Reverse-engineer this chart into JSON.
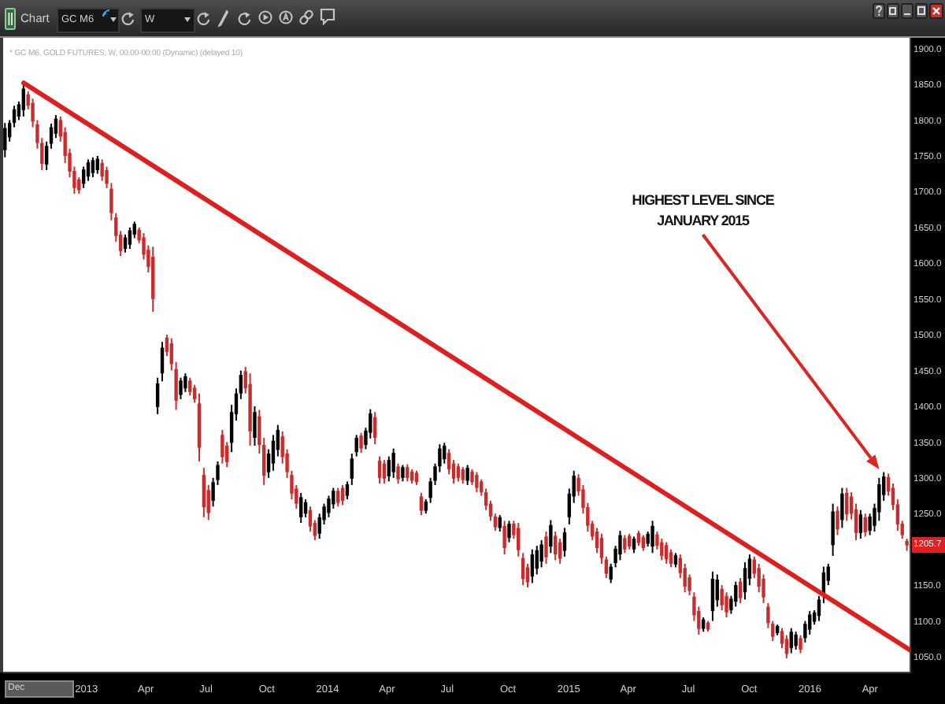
{
  "chart_data": {
    "type": "candlestick",
    "title": "* GC M6, GOLD FUTURES, W, 00:00-00:00 (Dynamic) (delayed 10)",
    "x": [
      "2012-08-31",
      "2012-09-07",
      "2012-09-14",
      "2012-09-21",
      "2012-09-28",
      "2012-10-05",
      "2012-10-12",
      "2012-10-19",
      "2012-10-26",
      "2012-11-02",
      "2012-11-09",
      "2012-11-16",
      "2012-11-23",
      "2012-11-30",
      "2012-12-07",
      "2012-12-14",
      "2012-12-21",
      "2012-12-28",
      "2013-01-04",
      "2013-01-11",
      "2013-01-18",
      "2013-01-25",
      "2013-02-01",
      "2013-02-08",
      "2013-02-15",
      "2013-02-22",
      "2013-03-01",
      "2013-03-08",
      "2013-03-15",
      "2013-03-22",
      "2013-03-29",
      "2013-04-05",
      "2013-04-12",
      "2013-04-19",
      "2013-04-26",
      "2013-05-03",
      "2013-05-10",
      "2013-05-17",
      "2013-05-24",
      "2013-05-31",
      "2013-06-07",
      "2013-06-14",
      "2013-06-21",
      "2013-06-28",
      "2013-07-05",
      "2013-07-12",
      "2013-07-19",
      "2013-07-26",
      "2013-08-02",
      "2013-08-09",
      "2013-08-16",
      "2013-08-23",
      "2013-08-30",
      "2013-09-06",
      "2013-09-13",
      "2013-09-20",
      "2013-09-27",
      "2013-10-04",
      "2013-10-11",
      "2013-10-18",
      "2013-10-25",
      "2013-11-01",
      "2013-11-08",
      "2013-11-15",
      "2013-11-22",
      "2013-11-29",
      "2013-12-06",
      "2013-12-13",
      "2013-12-20",
      "2013-12-27",
      "2014-01-03",
      "2014-01-10",
      "2014-01-17",
      "2014-01-24",
      "2014-01-31",
      "2014-02-07",
      "2014-02-14",
      "2014-02-21",
      "2014-02-28",
      "2014-03-07",
      "2014-03-14",
      "2014-03-21",
      "2014-03-28",
      "2014-04-04",
      "2014-04-11",
      "2014-04-18",
      "2014-04-25",
      "2014-05-02",
      "2014-05-09",
      "2014-05-16",
      "2014-05-23",
      "2014-05-30",
      "2014-06-06",
      "2014-06-13",
      "2014-06-20",
      "2014-06-27",
      "2014-07-04",
      "2014-07-11",
      "2014-07-18",
      "2014-07-25",
      "2014-08-01",
      "2014-08-08",
      "2014-08-15",
      "2014-08-22",
      "2014-08-29",
      "2014-09-05",
      "2014-09-12",
      "2014-09-19",
      "2014-09-26",
      "2014-10-03",
      "2014-10-10",
      "2014-10-17",
      "2014-10-24",
      "2014-10-31",
      "2014-11-07",
      "2014-11-14",
      "2014-11-21",
      "2014-11-28",
      "2014-12-05",
      "2014-12-12",
      "2014-12-19",
      "2014-12-26",
      "2015-01-02",
      "2015-01-09",
      "2015-01-16",
      "2015-01-23",
      "2015-01-30",
      "2015-02-06",
      "2015-02-13",
      "2015-02-20",
      "2015-02-27",
      "2015-03-06",
      "2015-03-13",
      "2015-03-20",
      "2015-03-27",
      "2015-04-03",
      "2015-04-10",
      "2015-04-17",
      "2015-04-24",
      "2015-05-01",
      "2015-05-08",
      "2015-05-15",
      "2015-05-22",
      "2015-05-29",
      "2015-06-05",
      "2015-06-12",
      "2015-06-19",
      "2015-06-26",
      "2015-07-03",
      "2015-07-10",
      "2015-07-17",
      "2015-07-24",
      "2015-07-31",
      "2015-08-07",
      "2015-08-14",
      "2015-08-21",
      "2015-08-28",
      "2015-09-04",
      "2015-09-11",
      "2015-09-18",
      "2015-09-25",
      "2015-10-02",
      "2015-10-09",
      "2015-10-16",
      "2015-10-23",
      "2015-10-30",
      "2015-11-06",
      "2015-11-13",
      "2015-11-20",
      "2015-11-27",
      "2015-12-04",
      "2015-12-11",
      "2015-12-18",
      "2015-12-25",
      "2016-01-01",
      "2016-01-08",
      "2016-01-15",
      "2016-01-22",
      "2016-01-29",
      "2016-02-05",
      "2016-02-12",
      "2016-02-19",
      "2016-02-26",
      "2016-03-04",
      "2016-03-11",
      "2016-03-18",
      "2016-03-25",
      "2016-04-01",
      "2016-04-08",
      "2016-04-15",
      "2016-04-22",
      "2016-04-29",
      "2016-05-06",
      "2016-05-13",
      "2016-05-20",
      "2016-05-27"
    ],
    "ohlc": [
      [
        1758,
        1796,
        1748,
        1789
      ],
      [
        1776,
        1800,
        1770,
        1796
      ],
      [
        1796,
        1820,
        1790,
        1815
      ],
      [
        1805,
        1826,
        1800,
        1822
      ],
      [
        1814,
        1851,
        1805,
        1844
      ],
      [
        1836,
        1840,
        1815,
        1820
      ],
      [
        1824,
        1830,
        1790,
        1798
      ],
      [
        1794,
        1800,
        1760,
        1768
      ],
      [
        1768,
        1775,
        1730,
        1739
      ],
      [
        1738,
        1770,
        1730,
        1764
      ],
      [
        1767,
        1795,
        1760,
        1790
      ],
      [
        1781,
        1807,
        1775,
        1802
      ],
      [
        1800,
        1805,
        1770,
        1777
      ],
      [
        1783,
        1790,
        1740,
        1750
      ],
      [
        1754,
        1760,
        1720,
        1728
      ],
      [
        1729,
        1735,
        1697,
        1705
      ],
      [
        1717,
        1720,
        1697,
        1702
      ],
      [
        1711,
        1735,
        1705,
        1731
      ],
      [
        1721,
        1745,
        1715,
        1741
      ],
      [
        1726,
        1748,
        1720,
        1744
      ],
      [
        1730,
        1750,
        1725,
        1746
      ],
      [
        1740,
        1745,
        1715,
        1721
      ],
      [
        1730,
        1735,
        1705,
        1711
      ],
      [
        1704,
        1712,
        1660,
        1670
      ],
      [
        1664,
        1670,
        1630,
        1638
      ],
      [
        1640,
        1645,
        1610,
        1617
      ],
      [
        1620,
        1640,
        1615,
        1636
      ],
      [
        1626,
        1650,
        1620,
        1646
      ],
      [
        1640,
        1658,
        1635,
        1655
      ],
      [
        1647,
        1650,
        1628,
        1632
      ],
      [
        1636,
        1642,
        1605,
        1612
      ],
      [
        1619,
        1625,
        1587,
        1595
      ],
      [
        1609,
        1623,
        1532,
        1550
      ],
      [
        1399,
        1440,
        1389,
        1432
      ],
      [
        1446,
        1490,
        1435,
        1482
      ],
      [
        1496,
        1500,
        1470,
        1476
      ],
      [
        1488,
        1495,
        1450,
        1459
      ],
      [
        1452,
        1462,
        1395,
        1408
      ],
      [
        1416,
        1440,
        1410,
        1436
      ],
      [
        1425,
        1446,
        1420,
        1442
      ],
      [
        1436,
        1440,
        1415,
        1420
      ],
      [
        1426,
        1430,
        1405,
        1410
      ],
      [
        1404,
        1418,
        1323,
        1342
      ],
      [
        1304,
        1314,
        1245,
        1259
      ],
      [
        1283,
        1290,
        1241,
        1251
      ],
      [
        1268,
        1300,
        1260,
        1294
      ],
      [
        1297,
        1323,
        1290,
        1318
      ],
      [
        1360,
        1367,
        1320,
        1329
      ],
      [
        1345,
        1350,
        1315,
        1322
      ],
      [
        1349,
        1402,
        1336,
        1392
      ],
      [
        1389,
        1425,
        1380,
        1418
      ],
      [
        1418,
        1450,
        1410,
        1444
      ],
      [
        1449,
        1455,
        1418,
        1425
      ],
      [
        1431,
        1446,
        1345,
        1365
      ],
      [
        1356,
        1400,
        1345,
        1392
      ],
      [
        1386,
        1395,
        1334,
        1346
      ],
      [
        1346,
        1356,
        1290,
        1303
      ],
      [
        1308,
        1340,
        1300,
        1334
      ],
      [
        1320,
        1360,
        1310,
        1352
      ],
      [
        1339,
        1374,
        1330,
        1367
      ],
      [
        1358,
        1365,
        1320,
        1329
      ],
      [
        1334,
        1340,
        1300,
        1308
      ],
      [
        1304,
        1310,
        1270,
        1278
      ],
      [
        1285,
        1290,
        1257,
        1264
      ],
      [
        1245,
        1279,
        1237,
        1273
      ],
      [
        1250,
        1270,
        1245,
        1266
      ],
      [
        1255,
        1260,
        1225,
        1232
      ],
      [
        1237,
        1241,
        1213,
        1219
      ],
      [
        1222,
        1250,
        1215,
        1245
      ],
      [
        1241,
        1264,
        1235,
        1260
      ],
      [
        1251,
        1275,
        1245,
        1271
      ],
      [
        1263,
        1286,
        1257,
        1282
      ],
      [
        1282,
        1286,
        1260,
        1265
      ],
      [
        1286,
        1290,
        1262,
        1268
      ],
      [
        1275,
        1295,
        1270,
        1291
      ],
      [
        1299,
        1334,
        1290,
        1327
      ],
      [
        1336,
        1360,
        1330,
        1356
      ],
      [
        1359,
        1363,
        1335,
        1341
      ],
      [
        1346,
        1370,
        1340,
        1366
      ],
      [
        1363,
        1396,
        1355,
        1390
      ],
      [
        1385,
        1392,
        1347,
        1356
      ],
      [
        1324,
        1330,
        1292,
        1300
      ],
      [
        1320,
        1325,
        1292,
        1299
      ],
      [
        1302,
        1330,
        1295,
        1325
      ],
      [
        1308,
        1341,
        1300,
        1335
      ],
      [
        1316,
        1320,
        1292,
        1298
      ],
      [
        1300,
        1318,
        1295,
        1315
      ],
      [
        1315,
        1319,
        1295,
        1300
      ],
      [
        1309,
        1312,
        1292,
        1296
      ],
      [
        1307,
        1310,
        1290,
        1294
      ],
      [
        1274,
        1279,
        1248,
        1254
      ],
      [
        1254,
        1270,
        1250,
        1267
      ],
      [
        1272,
        1300,
        1265,
        1295
      ],
      [
        1296,
        1320,
        1290,
        1316
      ],
      [
        1316,
        1347,
        1308,
        1341
      ],
      [
        1326,
        1349,
        1320,
        1345
      ],
      [
        1335,
        1340,
        1305,
        1312
      ],
      [
        1320,
        1325,
        1292,
        1299
      ],
      [
        1316,
        1320,
        1295,
        1300
      ],
      [
        1312,
        1315,
        1292,
        1297
      ],
      [
        1296,
        1318,
        1290,
        1314
      ],
      [
        1309,
        1312,
        1290,
        1294
      ],
      [
        1304,
        1308,
        1280,
        1286
      ],
      [
        1295,
        1298,
        1275,
        1280
      ],
      [
        1280,
        1285,
        1255,
        1261
      ],
      [
        1264,
        1268,
        1240,
        1246
      ],
      [
        1246,
        1250,
        1226,
        1231
      ],
      [
        1230,
        1248,
        1225,
        1245
      ],
      [
        1233,
        1240,
        1193,
        1202
      ],
      [
        1216,
        1240,
        1210,
        1236
      ],
      [
        1236,
        1240,
        1215,
        1220
      ],
      [
        1230,
        1237,
        1190,
        1199
      ],
      [
        1188,
        1195,
        1150,
        1159
      ],
      [
        1175,
        1180,
        1147,
        1154
      ],
      [
        1162,
        1200,
        1153,
        1193
      ],
      [
        1173,
        1205,
        1165,
        1199
      ],
      [
        1183,
        1213,
        1175,
        1207
      ],
      [
        1218,
        1225,
        1180,
        1189
      ],
      [
        1204,
        1241,
        1195,
        1234
      ],
      [
        1219,
        1225,
        1185,
        1193
      ],
      [
        1210,
        1215,
        1180,
        1187
      ],
      [
        1198,
        1230,
        1190,
        1224
      ],
      [
        1245,
        1285,
        1235,
        1278
      ],
      [
        1274,
        1310,
        1265,
        1303
      ],
      [
        1300,
        1305,
        1275,
        1281
      ],
      [
        1284,
        1290,
        1250,
        1258
      ],
      [
        1259,
        1265,
        1225,
        1233
      ],
      [
        1236,
        1240,
        1213,
        1218
      ],
      [
        1225,
        1230,
        1195,
        1202
      ],
      [
        1216,
        1222,
        1180,
        1188
      ],
      [
        1186,
        1190,
        1160,
        1166
      ],
      [
        1158,
        1180,
        1153,
        1176
      ],
      [
        1181,
        1205,
        1175,
        1201
      ],
      [
        1193,
        1226,
        1185,
        1220
      ],
      [
        1216,
        1220,
        1195,
        1200
      ],
      [
        1219,
        1222,
        1200,
        1204
      ],
      [
        1200,
        1218,
        1195,
        1215
      ],
      [
        1223,
        1226,
        1205,
        1209
      ],
      [
        1217,
        1220,
        1198,
        1202
      ],
      [
        1208,
        1225,
        1204,
        1222
      ],
      [
        1204,
        1240,
        1195,
        1233
      ],
      [
        1221,
        1225,
        1200,
        1205
      ],
      [
        1210,
        1215,
        1185,
        1191
      ],
      [
        1206,
        1210,
        1180,
        1186
      ],
      [
        1196,
        1200,
        1175,
        1180
      ],
      [
        1179,
        1195,
        1175,
        1192
      ],
      [
        1188,
        1193,
        1160,
        1167
      ],
      [
        1174,
        1180,
        1140,
        1148
      ],
      [
        1161,
        1165,
        1136,
        1142
      ],
      [
        1134,
        1140,
        1100,
        1108
      ],
      [
        1114,
        1120,
        1081,
        1089
      ],
      [
        1089,
        1105,
        1085,
        1102
      ],
      [
        1098,
        1100,
        1085,
        1088
      ],
      [
        1114,
        1169,
        1100,
        1159
      ],
      [
        1129,
        1165,
        1120,
        1158
      ],
      [
        1145,
        1150,
        1115,
        1122
      ],
      [
        1135,
        1140,
        1105,
        1112
      ],
      [
        1115,
        1135,
        1110,
        1131
      ],
      [
        1127,
        1155,
        1120,
        1150
      ],
      [
        1155,
        1160,
        1125,
        1132
      ],
      [
        1140,
        1182,
        1130,
        1174
      ],
      [
        1159,
        1193,
        1150,
        1187
      ],
      [
        1186,
        1190,
        1160,
        1166
      ],
      [
        1174,
        1180,
        1140,
        1148
      ],
      [
        1159,
        1165,
        1125,
        1133
      ],
      [
        1120,
        1125,
        1090,
        1097
      ],
      [
        1096,
        1100,
        1072,
        1078
      ],
      [
        1083,
        1095,
        1080,
        1093
      ],
      [
        1086,
        1090,
        1062,
        1068
      ],
      [
        1075,
        1080,
        1048,
        1054
      ],
      [
        1062,
        1090,
        1055,
        1085
      ],
      [
        1065,
        1085,
        1060,
        1081
      ],
      [
        1076,
        1080,
        1055,
        1060
      ],
      [
        1076,
        1100,
        1070,
        1096
      ],
      [
        1088,
        1114,
        1081,
        1109
      ],
      [
        1099,
        1115,
        1095,
        1112
      ],
      [
        1107,
        1135,
        1100,
        1130
      ],
      [
        1135,
        1176,
        1125,
        1168
      ],
      [
        1156,
        1180,
        1150,
        1176
      ],
      [
        1206,
        1264,
        1191,
        1253
      ],
      [
        1254,
        1260,
        1220,
        1228
      ],
      [
        1241,
        1286,
        1230,
        1278
      ],
      [
        1279,
        1286,
        1240,
        1249
      ],
      [
        1274,
        1280,
        1242,
        1250
      ],
      [
        1256,
        1264,
        1213,
        1223
      ],
      [
        1223,
        1255,
        1215,
        1249
      ],
      [
        1245,
        1250,
        1218,
        1224
      ],
      [
        1226,
        1250,
        1220,
        1246
      ],
      [
        1233,
        1264,
        1225,
        1258
      ],
      [
        1252,
        1300,
        1240,
        1291
      ],
      [
        1276,
        1308,
        1268,
        1302
      ],
      [
        1301,
        1306,
        1275,
        1281
      ],
      [
        1286,
        1292,
        1255,
        1262
      ],
      [
        1263,
        1270,
        1226,
        1235
      ],
      [
        1236,
        1240,
        1215,
        1220
      ],
      [
        1212,
        1215,
        1198,
        1205.7
      ]
    ],
    "colors": [
      "#000000",
      "#000000",
      "#000000",
      "#000000",
      "#000000",
      "#cc2b2b",
      "#cc2b2b",
      "#cc2b2b",
      "#cc2b2b",
      "#000000",
      "#000000",
      "#000000",
      "#cc2b2b",
      "#cc2b2b",
      "#cc2b2b",
      "#cc2b2b",
      "#cc2b2b",
      "#000000",
      "#000000",
      "#000000",
      "#000000",
      "#cc2b2b",
      "#cc2b2b",
      "#cc2b2b",
      "#cc2b2b",
      "#cc2b2b",
      "#000000",
      "#000000",
      "#000000",
      "#cc2b2b",
      "#cc2b2b",
      "#cc2b2b",
      "#cc2b2b",
      "#000000",
      "#000000",
      "#cc2b2b",
      "#cc2b2b",
      "#cc2b2b",
      "#000000",
      "#000000",
      "#cc2b2b",
      "#cc2b2b",
      "#cc2b2b",
      "#cc2b2b",
      "#cc2b2b",
      "#000000",
      "#000000",
      "#cc2b2b",
      "#cc2b2b",
      "#000000",
      "#000000",
      "#000000",
      "#cc2b2b",
      "#cc2b2b",
      "#000000",
      "#cc2b2b",
      "#cc2b2b",
      "#000000",
      "#000000",
      "#000000",
      "#cc2b2b",
      "#cc2b2b",
      "#cc2b2b",
      "#cc2b2b",
      "#000000",
      "#000000",
      "#cc2b2b",
      "#cc2b2b",
      "#000000",
      "#000000",
      "#000000",
      "#000000",
      "#cc2b2b",
      "#cc2b2b",
      "#000000",
      "#000000",
      "#000000",
      "#cc2b2b",
      "#000000",
      "#000000",
      "#cc2b2b",
      "#cc2b2b",
      "#cc2b2b",
      "#000000",
      "#000000",
      "#cc2b2b",
      "#000000",
      "#cc2b2b",
      "#cc2b2b",
      "#cc2b2b",
      "#cc2b2b",
      "#000000",
      "#000000",
      "#000000",
      "#000000",
      "#000000",
      "#cc2b2b",
      "#cc2b2b",
      "#cc2b2b",
      "#cc2b2b",
      "#000000",
      "#cc2b2b",
      "#cc2b2b",
      "#cc2b2b",
      "#cc2b2b",
      "#cc2b2b",
      "#cc2b2b",
      "#000000",
      "#cc2b2b",
      "#000000",
      "#cc2b2b",
      "#cc2b2b",
      "#cc2b2b",
      "#cc2b2b",
      "#000000",
      "#000000",
      "#000000",
      "#cc2b2b",
      "#000000",
      "#cc2b2b",
      "#cc2b2b",
      "#000000",
      "#000000",
      "#000000",
      "#cc2b2b",
      "#cc2b2b",
      "#cc2b2b",
      "#cc2b2b",
      "#cc2b2b",
      "#cc2b2b",
      "#cc2b2b",
      "#000000",
      "#000000",
      "#000000",
      "#cc2b2b",
      "#cc2b2b",
      "#000000",
      "#cc2b2b",
      "#cc2b2b",
      "#000000",
      "#000000",
      "#cc2b2b",
      "#cc2b2b",
      "#cc2b2b",
      "#cc2b2b",
      "#000000",
      "#cc2b2b",
      "#cc2b2b",
      "#cc2b2b",
      "#cc2b2b",
      "#cc2b2b",
      "#000000",
      "#cc2b2b",
      "#000000",
      "#000000",
      "#cc2b2b",
      "#cc2b2b",
      "#000000",
      "#000000",
      "#cc2b2b",
      "#000000",
      "#000000",
      "#cc2b2b",
      "#cc2b2b",
      "#cc2b2b",
      "#cc2b2b",
      "#cc2b2b",
      "#000000",
      "#cc2b2b",
      "#cc2b2b",
      "#000000",
      "#000000",
      "#cc2b2b",
      "#000000",
      "#000000",
      "#000000",
      "#000000",
      "#000000",
      "#000000",
      "#000000",
      "#cc2b2b",
      "#000000",
      "#cc2b2b",
      "#cc2b2b",
      "#cc2b2b",
      "#000000",
      "#cc2b2b",
      "#000000",
      "#000000",
      "#000000",
      "#000000",
      "#cc2b2b",
      "#cc2b2b",
      "#cc2b2b",
      "#cc2b2b",
      "#cc2b2b"
    ],
    "series": [
      {
        "type": "line",
        "x": [
          "2012-09-28",
          "2016-06-01"
        ],
        "values": [
          1852,
          1059
        ],
        "color": "#dd1f1f"
      }
    ],
    "xlim": [
      "2012-08-28",
      "2016-06-01"
    ],
    "xticks": [
      {
        "value": "2013-01-01",
        "label": "2013"
      },
      {
        "value": "2013-04-01",
        "label": "Apr"
      },
      {
        "value": "2013-07-01",
        "label": "Jul"
      },
      {
        "value": "2013-10-01",
        "label": "Oct"
      },
      {
        "value": "2014-01-01",
        "label": "2014"
      },
      {
        "value": "2014-04-01",
        "label": "Apr"
      },
      {
        "value": "2014-07-01",
        "label": "Jul"
      },
      {
        "value": "2014-10-01",
        "label": "Oct"
      },
      {
        "value": "2015-01-01",
        "label": "2015"
      },
      {
        "value": "2015-04-01",
        "label": "Apr"
      },
      {
        "value": "2015-07-01",
        "label": "Jul"
      },
      {
        "value": "2015-10-01",
        "label": "Oct"
      },
      {
        "value": "2016-01-01",
        "label": "2016"
      },
      {
        "value": "2016-04-01",
        "label": "Apr"
      }
    ],
    "ylim": [
      1028,
      1915
    ],
    "yticks": [
      {
        "value": 1050,
        "label": "1050.0"
      },
      {
        "value": 1100,
        "label": "1100.0"
      },
      {
        "value": 1150,
        "label": "1150.0"
      },
      {
        "value": 1250,
        "label": "1250.0"
      },
      {
        "value": 1300,
        "label": "1300.0"
      },
      {
        "value": 1350,
        "label": "1350.0"
      },
      {
        "value": 1400,
        "label": "1400.0"
      },
      {
        "value": 1450,
        "label": "1450.0"
      },
      {
        "value": 1500,
        "label": "1500.0"
      },
      {
        "value": 1550,
        "label": "1550.0"
      },
      {
        "value": 1600,
        "label": "1600.0"
      },
      {
        "value": 1650,
        "label": "1650.0"
      },
      {
        "value": 1700,
        "label": "1700.0"
      },
      {
        "value": 1750,
        "label": "1750.0"
      },
      {
        "value": 1800,
        "label": "1800.0"
      },
      {
        "value": 1850,
        "label": "1850.0"
      },
      {
        "value": 1900,
        "label": "1900.0"
      }
    ],
    "annotations": [
      "Chart",
      "GC M6",
      "W",
      "Dec",
      {
        "text": "HIGHEST LEVEL SINCE JANUARY 2015",
        "x": "2016-04-15",
        "y": 1312
      },
      {
        "text": "1205.7",
        "y": 1205.7
      }
    ]
  }
}
